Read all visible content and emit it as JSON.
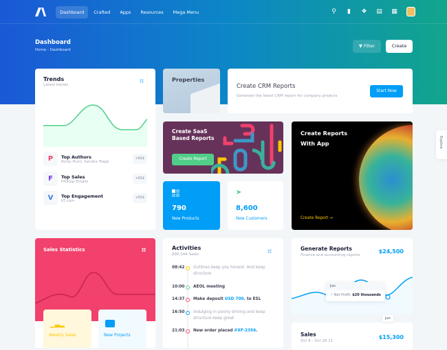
{
  "nav": {
    "items": [
      "Dashboard",
      "Crafted",
      "Apps",
      "Resources",
      "Mega Menu"
    ],
    "active": "Dashboard"
  },
  "toolbar": {
    "icons": [
      "search-icon",
      "chart-icon",
      "nodes-icon",
      "chat-icon",
      "grid-icon"
    ]
  },
  "page": {
    "title": "Dashboard",
    "breadcrumb": [
      "Home",
      "Dashboard"
    ],
    "breadcrumb_sep": "-",
    "filter_label": "Filter",
    "create_label": "Create"
  },
  "trends": {
    "title": "Trends",
    "subtitle": "Latest trends",
    "items": [
      {
        "title": "Top Authors",
        "sub": "Ricky Hunt, Sandra Trepp",
        "badge": "+82$",
        "icon": "P",
        "color": "#f1416c"
      },
      {
        "title": "Top Sales",
        "sub": "PitStop Emails",
        "badge": "+82$",
        "icon": "F",
        "color": "#7239ea"
      },
      {
        "title": "Top Engagement",
        "sub": "KT.com",
        "badge": "+82$",
        "icon": "V",
        "color": "#3b7ddd"
      }
    ]
  },
  "properties": {
    "title": "Properties"
  },
  "crm": {
    "title": "Create CRM Reports",
    "subtitle": "Generate the latest CRM report for company projects",
    "button": "Start Now"
  },
  "saas": {
    "title1": "Create SaaS",
    "title2": "Based Reports",
    "button": "Create Report"
  },
  "app_report": {
    "title1": "Create Reports",
    "title2": "With App",
    "link": "Create Report"
  },
  "stats": [
    {
      "value": "790",
      "label": "New Products"
    },
    {
      "value": "8,600",
      "label": "New Customers"
    }
  ],
  "sales_stats": {
    "title": "Sales Statistics",
    "weekly": "Weekly Sales",
    "projects": "New Projects"
  },
  "activities": {
    "title": "Activities",
    "subtitle": "890,344 Sales",
    "rows": [
      {
        "time": "08:42",
        "color": "#ffc700",
        "pre": "Outlines keep you honest. And keep structure",
        "link": "",
        "post": "",
        "style": "mute"
      },
      {
        "time": "10:00",
        "color": "#50cd89",
        "pre": "AEOL meeting",
        "link": "",
        "post": "",
        "style": "strong"
      },
      {
        "time": "14:37",
        "color": "#f1416c",
        "pre": "Make deposit ",
        "link": "USD 700",
        "post": ". to ESL",
        "style": "strong"
      },
      {
        "time": "16:50",
        "color": "#009ef7",
        "pre": "Indulging in poorly driving and keep structure keep great",
        "link": "",
        "post": "",
        "style": "mute"
      },
      {
        "time": "21:03",
        "color": "#f1416c",
        "pre": "New order placed ",
        "link": "#XF-2356",
        "post": ".",
        "style": "strong"
      }
    ]
  },
  "gen_reports": {
    "title": "Generate Reports",
    "subtitle": "Finance and accounting reports",
    "amount": "$24,500",
    "tooltip_title": "Jun",
    "tooltip_label": "Net Profit:",
    "tooltip_value": "$20 thousands",
    "x_label": "Jun"
  },
  "sales": {
    "title": "Sales",
    "subtitle": "Oct 8 - Oct 26 21",
    "amount": "$15,300"
  },
  "explore": "Explore",
  "colors": {
    "primary": "#009ef7",
    "success": "#50cd89",
    "danger": "#f1416c",
    "saas": "#663259"
  }
}
